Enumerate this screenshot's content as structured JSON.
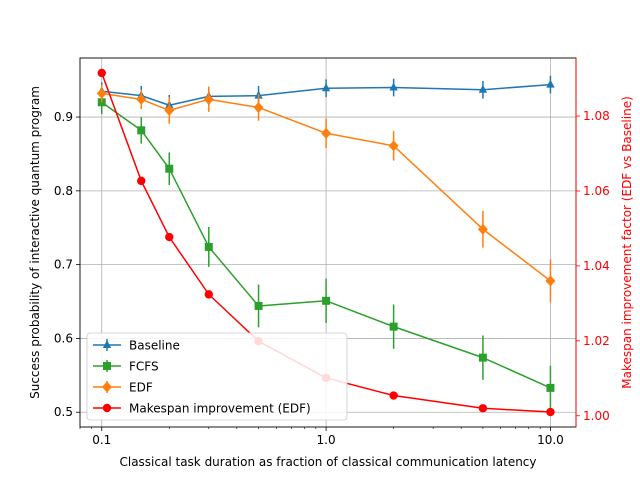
{
  "chart_data": {
    "type": "line",
    "xlabel": "Classical task duration as fraction of classical communication latency",
    "ylabel_left": "Success probability of interactive quantum program",
    "ylabel_right": "Makespan improvement factor (EDF vs Baseline)",
    "x_scale": "log",
    "xlim": [
      0.08,
      13
    ],
    "ylim_left": [
      0.48,
      0.98
    ],
    "ylim_right": [
      0.997,
      1.0955
    ],
    "x_ticks": [
      0.1,
      1.0,
      10.0
    ],
    "x_tick_labels": [
      "0.1",
      "1.0",
      "10.0"
    ],
    "y_ticks_left": [
      0.5,
      0.6,
      0.7,
      0.8,
      0.9
    ],
    "y_tick_labels_left": [
      "0.5",
      "0.6",
      "0.7",
      "0.8",
      "0.9"
    ],
    "y_ticks_right": [
      1.0,
      1.02,
      1.04,
      1.06,
      1.08
    ],
    "y_tick_labels_right": [
      "1.00",
      "1.02",
      "1.04",
      "1.06",
      "1.08"
    ],
    "grid": true,
    "legend_position": "lower-left",
    "right_axis_color": "#ff0000",
    "x": [
      0.1,
      0.15,
      0.2,
      0.3,
      0.5,
      1.0,
      2.0,
      5.0,
      10.0
    ],
    "series": [
      {
        "name": "Baseline",
        "axis": "left",
        "color": "#1f77b4",
        "marker": "triangle",
        "values": [
          0.935,
          0.929,
          0.916,
          0.928,
          0.929,
          0.939,
          0.94,
          0.937,
          0.944
        ],
        "errors": [
          0.012,
          0.013,
          0.014,
          0.013,
          0.013,
          0.012,
          0.012,
          0.012,
          0.012
        ]
      },
      {
        "name": "FCFS",
        "axis": "left",
        "color": "#2ca02c",
        "marker": "square",
        "values": [
          0.92,
          0.882,
          0.83,
          0.724,
          0.644,
          0.651,
          0.616,
          0.574,
          0.533
        ],
        "errors": [
          0.016,
          0.018,
          0.022,
          0.027,
          0.029,
          0.03,
          0.03,
          0.03,
          0.03
        ]
      },
      {
        "name": "EDF",
        "axis": "left",
        "color": "#ff7f0e",
        "marker": "diamond",
        "values": [
          0.932,
          0.924,
          0.909,
          0.924,
          0.913,
          0.878,
          0.861,
          0.748,
          0.678
        ],
        "errors": [
          0.012,
          0.013,
          0.018,
          0.017,
          0.018,
          0.02,
          0.02,
          0.025,
          0.029
        ]
      },
      {
        "name": "Makespan improvement (EDF)",
        "axis": "right",
        "color": "#ff0000",
        "marker": "circle",
        "values": [
          1.0915,
          1.0627,
          1.0477,
          1.0324,
          1.0199,
          1.0101,
          1.0054,
          1.002,
          1.001
        ],
        "errors": null
      }
    ]
  }
}
